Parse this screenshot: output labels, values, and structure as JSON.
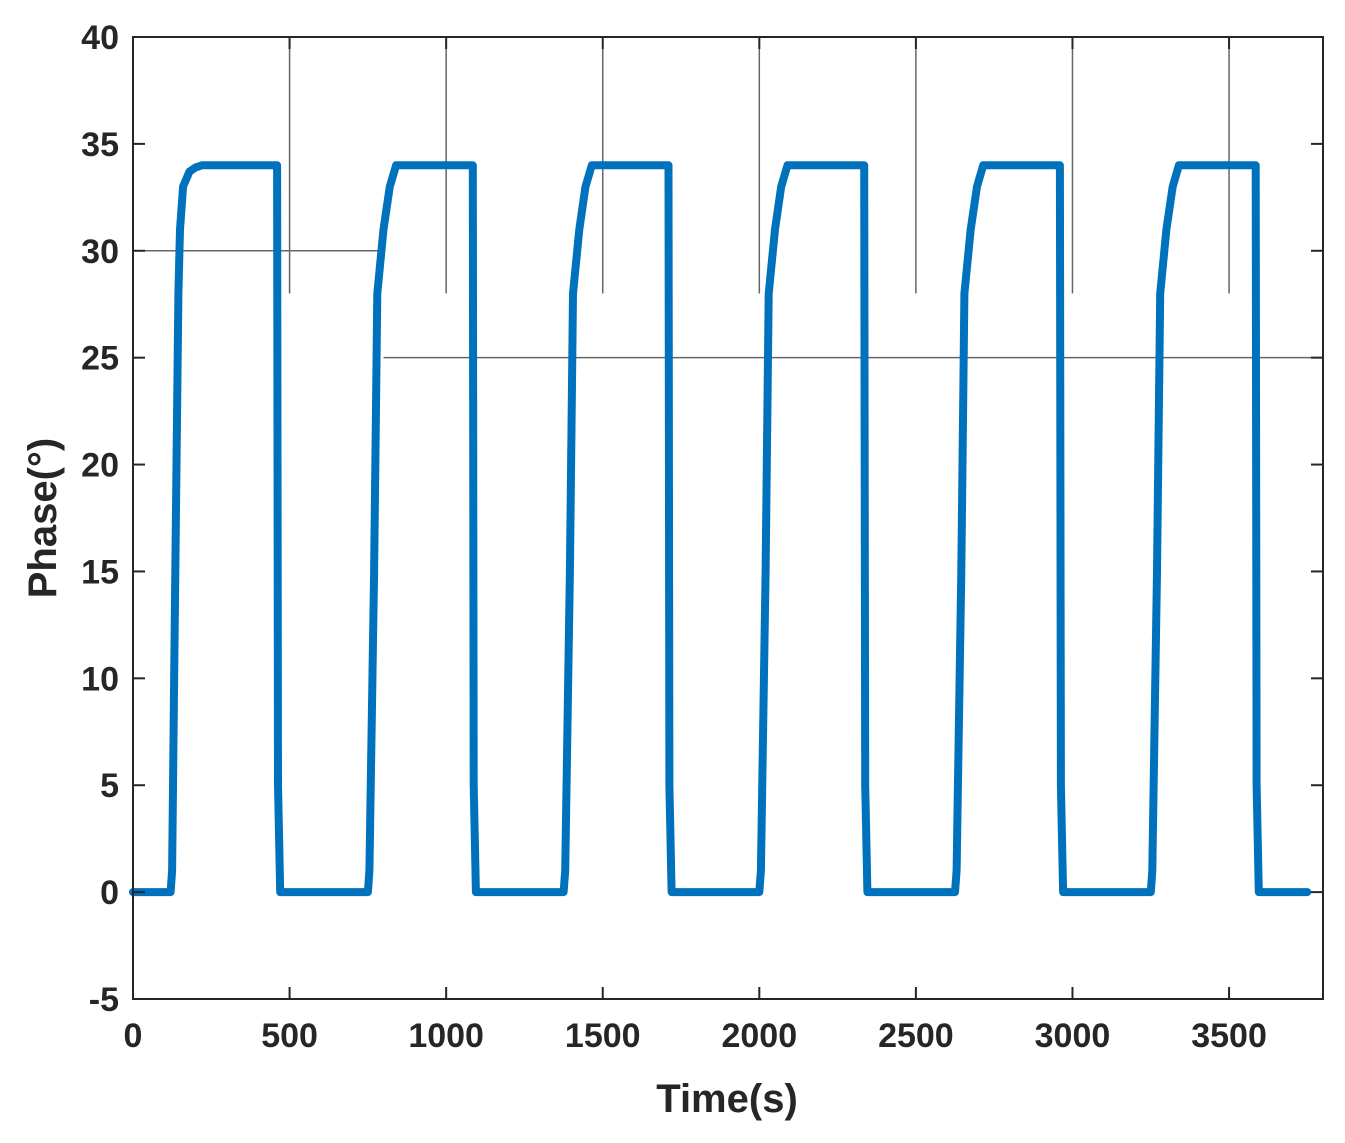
{
  "chart_data": {
    "type": "line",
    "xlabel": "Time(s)",
    "ylabel": "Phase(°)",
    "xlim": [
      0,
      3800
    ],
    "ylim": [
      -5,
      40
    ],
    "x_ticks": [
      0,
      500,
      1000,
      1500,
      2000,
      2500,
      3000,
      3500
    ],
    "x_tick_labels": [
      "0",
      "500",
      "1000",
      "1500",
      "2000",
      "2500",
      "3000",
      "3500"
    ],
    "y_ticks": [
      -5,
      0,
      5,
      10,
      15,
      20,
      25,
      30,
      35,
      40
    ],
    "y_tick_labels": [
      "-5",
      "0",
      "5",
      "10",
      "15",
      "20",
      "25",
      "30",
      "35",
      "40"
    ],
    "grid": false,
    "series": [
      {
        "color": "#0072BD",
        "x": [
          0,
          120,
          125,
          135,
          145,
          150,
          160,
          180,
          200,
          220,
          460,
          463,
          470,
          750,
          755,
          770,
          780,
          800,
          820,
          840,
          1085,
          1088,
          1095,
          1375,
          1380,
          1395,
          1405,
          1425,
          1445,
          1465,
          1710,
          1713,
          1720,
          2000,
          2005,
          2020,
          2030,
          2050,
          2070,
          2090,
          2335,
          2338,
          2345,
          2625,
          2630,
          2645,
          2655,
          2675,
          2695,
          2715,
          2960,
          2963,
          2970,
          3250,
          3255,
          3270,
          3280,
          3300,
          3320,
          3340,
          3585,
          3588,
          3595,
          3750
        ],
        "y": [
          0,
          0,
          1,
          15,
          28,
          31,
          33,
          33.7,
          33.9,
          34,
          34,
          5,
          0,
          0,
          1,
          15,
          28,
          31,
          33,
          34,
          34,
          5,
          0,
          0,
          1,
          15,
          28,
          31,
          33,
          34,
          34,
          5,
          0,
          0,
          1,
          15,
          28,
          31,
          33,
          34,
          34,
          5,
          0,
          0,
          1,
          15,
          28,
          31,
          33,
          34,
          34,
          5,
          0,
          0,
          1,
          15,
          28,
          31,
          33,
          34,
          34,
          5,
          0,
          0
        ]
      }
    ],
    "annotation_lines": [
      {
        "x": [
          0,
          800
        ],
        "y": [
          30,
          30
        ],
        "color": "#666666"
      },
      {
        "x": [
          800,
          3800
        ],
        "y": [
          25,
          25
        ],
        "color": "#666666"
      },
      {
        "x": [
          500,
          500
        ],
        "y": [
          28,
          40
        ],
        "color": "#666666"
      },
      {
        "x": [
          1000,
          1000
        ],
        "y": [
          28,
          40
        ],
        "color": "#666666"
      },
      {
        "x": [
          1500,
          1500
        ],
        "y": [
          28,
          40
        ],
        "color": "#666666"
      },
      {
        "x": [
          2000,
          2000
        ],
        "y": [
          28,
          40
        ],
        "color": "#666666"
      },
      {
        "x": [
          2500,
          2500
        ],
        "y": [
          28,
          40
        ],
        "color": "#666666"
      },
      {
        "x": [
          3000,
          3000
        ],
        "y": [
          28,
          40
        ],
        "color": "#666666"
      },
      {
        "x": [
          3500,
          3500
        ],
        "y": [
          28,
          40
        ],
        "color": "#666666"
      }
    ],
    "axis_color": "#262626"
  }
}
